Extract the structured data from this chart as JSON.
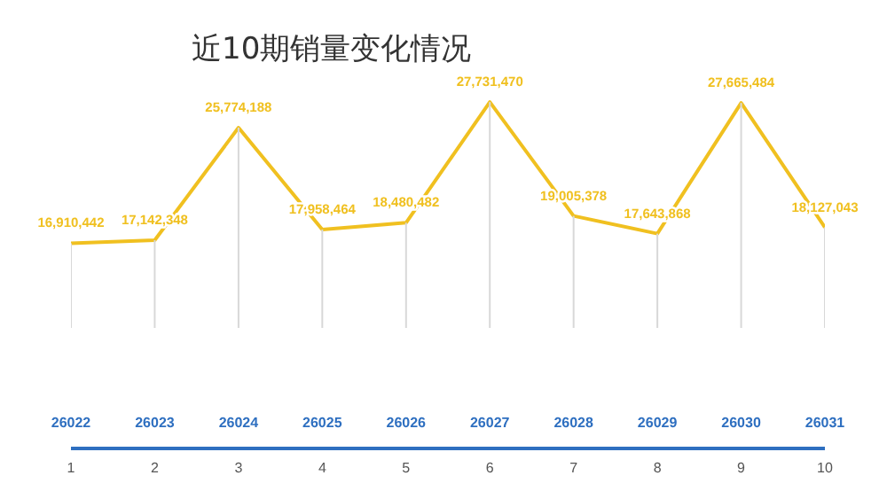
{
  "chart_data": {
    "type": "line",
    "title": "近10期销量变化情况",
    "x": [
      26022,
      26023,
      26024,
      26025,
      26026,
      26027,
      26028,
      26029,
      26030,
      26031
    ],
    "xlim": [
      26022,
      26031
    ],
    "xticks": [
      26022,
      26023,
      26024,
      26025,
      26026,
      26027,
      26028,
      26029,
      26030,
      26031
    ],
    "annotations": [
      "1",
      "2",
      "3",
      "4",
      "5",
      "6",
      "7",
      "8",
      "9",
      "10"
    ],
    "grid": "x",
    "series": [
      {
        "color": "#f0c020",
        "values": [
          16910442,
          17142348,
          25774188,
          17958464,
          18480482,
          27731470,
          19005378,
          17643868,
          27665484,
          18127043
        ],
        "value_labels": [
          "16,910,442",
          "17,142,348",
          "25,774,188",
          "17,958,464",
          "18,480,482",
          "27,731,470",
          "19,005,378",
          "17,643,868",
          "27,665,484",
          "18,127,043"
        ]
      }
    ],
    "tick_labels": "x"
  }
}
